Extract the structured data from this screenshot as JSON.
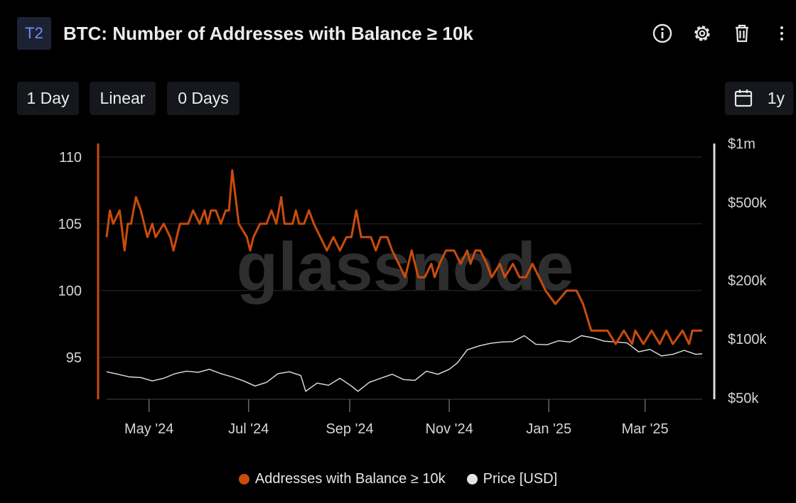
{
  "header": {
    "tier": "T2",
    "title": "BTC: Number of Addresses with Balance ≥ 10k"
  },
  "icons": [
    "info-icon",
    "gear-icon",
    "trash-icon",
    "more-vertical-icon",
    "calendar-icon"
  ],
  "controls": {
    "resolution": "1 Day",
    "scale": "Linear",
    "sma": "0 Days",
    "range": "1y"
  },
  "watermark": "glassnode",
  "colors": {
    "addresses": "#c94c0c",
    "price": "#e3e3e3",
    "background": "#000000",
    "grid": "#2b2b2b"
  },
  "chart_data": {
    "type": "line",
    "y_left": {
      "ticks": [
        "110",
        "105",
        "100",
        "95"
      ],
      "range": [
        93,
        111
      ]
    },
    "y_right": {
      "scale": "log",
      "ticks": [
        "$1m",
        "$500k",
        "$200k",
        "$100k",
        "$50k"
      ],
      "range": [
        50000,
        1000000
      ]
    },
    "x_ticks": [
      "May '24",
      "Jul '24",
      "Sep '24",
      "Nov '24",
      "Jan '25",
      "Mar '25"
    ],
    "grid": true,
    "legend_position": "bottom",
    "series": [
      {
        "name": "Addresses with Balance ≥ 10k",
        "axis": "left",
        "x": [
          "2024-04-05",
          "2024-04-07",
          "2024-04-09",
          "2024-04-13",
          "2024-04-16",
          "2024-04-18",
          "2024-04-20",
          "2024-04-23",
          "2024-04-26",
          "2024-04-30",
          "2024-05-03",
          "2024-05-05",
          "2024-05-10",
          "2024-05-14",
          "2024-05-16",
          "2024-05-20",
          "2024-05-25",
          "2024-05-28",
          "2024-06-01",
          "2024-06-04",
          "2024-06-06",
          "2024-06-08",
          "2024-06-11",
          "2024-06-14",
          "2024-06-17",
          "2024-06-19",
          "2024-06-21",
          "2024-06-25",
          "2024-06-30",
          "2024-07-02",
          "2024-07-04",
          "2024-07-08",
          "2024-07-12",
          "2024-07-15",
          "2024-07-18",
          "2024-07-21",
          "2024-07-23",
          "2024-07-28",
          "2024-07-30",
          "2024-08-01",
          "2024-08-04",
          "2024-08-07",
          "2024-08-10",
          "2024-08-14",
          "2024-08-18",
          "2024-08-22",
          "2024-08-26",
          "2024-08-30",
          "2024-09-02",
          "2024-09-05",
          "2024-09-08",
          "2024-09-11",
          "2024-09-14",
          "2024-09-17",
          "2024-09-20",
          "2024-09-24",
          "2024-09-27",
          "2024-10-01",
          "2024-10-05",
          "2024-10-09",
          "2024-10-13",
          "2024-10-17",
          "2024-10-21",
          "2024-10-23",
          "2024-10-26",
          "2024-10-30",
          "2024-11-04",
          "2024-11-08",
          "2024-11-12",
          "2024-11-14",
          "2024-11-17",
          "2024-11-20",
          "2024-11-24",
          "2024-11-27",
          "2024-12-02",
          "2024-12-05",
          "2024-12-10",
          "2024-12-14",
          "2024-12-18",
          "2024-12-22",
          "2024-12-26",
          "2024-12-30",
          "2025-01-05",
          "2025-01-12",
          "2025-01-18",
          "2025-01-22",
          "2025-01-27",
          "2025-02-01",
          "2025-02-06",
          "2025-02-11",
          "2025-02-16",
          "2025-02-21",
          "2025-02-23",
          "2025-02-28",
          "2025-03-05",
          "2025-03-10",
          "2025-03-14",
          "2025-03-18",
          "2025-03-24",
          "2025-03-28",
          "2025-03-30",
          "2025-04-02",
          "2025-04-05"
        ],
        "values": [
          104,
          106,
          105,
          106,
          103,
          105,
          105,
          107,
          106,
          104,
          105,
          104,
          105,
          104,
          103,
          105,
          105,
          106,
          105,
          106,
          105,
          106,
          106,
          105,
          106,
          106,
          109,
          105,
          104,
          103,
          104,
          105,
          105,
          106,
          105,
          107,
          105,
          105,
          106,
          105,
          105,
          106,
          105,
          104,
          103,
          104,
          103,
          104,
          104,
          106,
          104,
          104,
          104,
          103,
          104,
          104,
          103,
          102,
          101,
          103,
          101,
          101,
          102,
          101,
          102,
          103,
          103,
          102,
          103,
          102,
          103,
          103,
          102,
          101,
          102,
          101,
          102,
          101,
          101,
          102,
          101,
          100,
          99,
          100,
          100,
          99,
          97,
          97,
          97,
          96,
          97,
          96,
          97,
          96,
          97,
          96,
          97,
          96,
          97,
          96,
          97,
          97,
          97
        ]
      },
      {
        "name": "Price [USD]",
        "axis": "right",
        "x": [
          "2024-04-05",
          "2024-04-12",
          "2024-04-19",
          "2024-04-26",
          "2024-05-03",
          "2024-05-10",
          "2024-05-17",
          "2024-05-24",
          "2024-05-31",
          "2024-06-07",
          "2024-06-14",
          "2024-06-21",
          "2024-06-28",
          "2024-07-05",
          "2024-07-12",
          "2024-07-19",
          "2024-07-26",
          "2024-08-02",
          "2024-08-05",
          "2024-08-12",
          "2024-08-19",
          "2024-08-26",
          "2024-09-02",
          "2024-09-06",
          "2024-09-13",
          "2024-09-20",
          "2024-09-27",
          "2024-10-04",
          "2024-10-11",
          "2024-10-18",
          "2024-10-25",
          "2024-11-01",
          "2024-11-06",
          "2024-11-12",
          "2024-11-19",
          "2024-11-26",
          "2024-12-03",
          "2024-12-10",
          "2024-12-17",
          "2024-12-24",
          "2024-12-31",
          "2025-01-07",
          "2025-01-14",
          "2025-01-21",
          "2025-01-28",
          "2025-02-04",
          "2025-02-11",
          "2025-02-18",
          "2025-02-25",
          "2025-03-04",
          "2025-03-11",
          "2025-03-18",
          "2025-03-25",
          "2025-04-01",
          "2025-04-05"
        ],
        "values": [
          68000,
          66000,
          64000,
          63500,
          61000,
          63000,
          66500,
          68500,
          67500,
          70000,
          66500,
          64000,
          61000,
          57500,
          60000,
          66500,
          68000,
          65000,
          54000,
          59500,
          58000,
          63000,
          57500,
          54000,
          60000,
          63000,
          66000,
          62000,
          61500,
          68500,
          66000,
          70000,
          75500,
          88000,
          92000,
          95000,
          96500,
          97000,
          104000,
          94000,
          93500,
          98000,
          96500,
          104000,
          101500,
          97500,
          96500,
          95500,
          86000,
          88500,
          82000,
          83500,
          87500,
          83500,
          84000
        ]
      }
    ]
  }
}
